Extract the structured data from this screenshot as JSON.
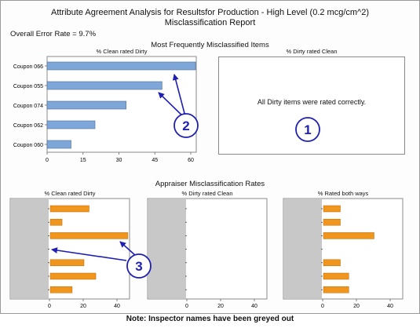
{
  "header": {
    "title": "Attribute Agreement Analysis for Resultsfor Production - High Level (0.2 mcg/cm^2)",
    "subtitle": "Misclassification Report",
    "overall_error": "Overall Error Rate = 9.7%"
  },
  "sections": {
    "top": "Most Frequently Misclassified Items",
    "bottom": "Appraiser Misclassification Rates"
  },
  "panels": {
    "clean_rated_dirty": "% Clean rated Dirty",
    "dirty_rated_clean": "% Dirty rated Clean",
    "rated_both_ways": "% Rated both ways",
    "no_dirty_errors_message": "All Dirty items were rated correctly."
  },
  "callouts": [
    "2",
    "1",
    "3"
  ],
  "note": "Note: Inspector names have been greyed out",
  "colors": {
    "items_bar": "#7ea6d8",
    "appraiser_bar": "#f0961e",
    "callout": "#1f1fb4",
    "grey_mask": "#c8c8c8"
  },
  "chart_data": [
    {
      "type": "bar",
      "orientation": "horizontal",
      "title": "% Clean rated Dirty",
      "categories": [
        "Coupon 066",
        "Coupon 055",
        "Coupon 074",
        "Coupon 062",
        "Coupon 060"
      ],
      "values": [
        62,
        48,
        33,
        20,
        10
      ],
      "xlim": [
        0,
        65
      ],
      "xticks": [
        0,
        15,
        30,
        45,
        60
      ]
    },
    {
      "type": "bar",
      "orientation": "horizontal",
      "title": "% Dirty rated Clean",
      "categories": [],
      "values": []
    },
    {
      "type": "bar",
      "orientation": "horizontal",
      "title": "% Clean rated Dirty",
      "categories": [
        "",
        "",
        "",
        "",
        "",
        "",
        ""
      ],
      "values": [
        23,
        7,
        46,
        0,
        20,
        27,
        13
      ],
      "xlim": [
        0,
        50
      ],
      "xticks": [
        0,
        20,
        40
      ]
    },
    {
      "type": "bar",
      "orientation": "horizontal",
      "title": "% Dirty rated Clean",
      "categories": [
        "",
        "",
        "",
        "",
        "",
        "",
        ""
      ],
      "values": [
        0,
        0,
        0,
        0,
        0,
        0,
        0
      ],
      "xlim": [
        0,
        50
      ],
      "xticks": [
        0,
        20,
        40
      ]
    },
    {
      "type": "bar",
      "orientation": "horizontal",
      "title": "% Rated both ways",
      "categories": [
        "",
        "",
        "",
        "",
        "",
        "",
        ""
      ],
      "values": [
        10,
        10,
        30,
        0,
        10,
        15,
        15
      ],
      "xlim": [
        0,
        50
      ],
      "xticks": [
        0,
        20,
        40
      ]
    }
  ]
}
